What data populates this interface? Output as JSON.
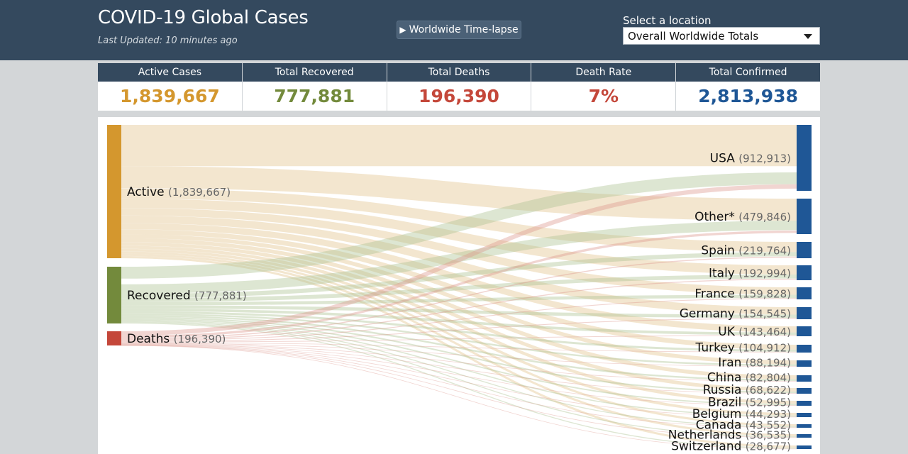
{
  "header": {
    "title": "COVID-19 Global Cases",
    "last_updated": "Last Updated: 10 minutes ago",
    "timelapse_label": "Worldwide Time-lapse",
    "location_label": "Select a location",
    "location_selected": "Overall Worldwide Totals"
  },
  "stats": [
    {
      "label": "Active Cases",
      "value": "1,839,667",
      "color": "#d4972e"
    },
    {
      "label": "Total Recovered",
      "value": "777,881",
      "color": "#738a3c"
    },
    {
      "label": "Total Deaths",
      "value": "196,390",
      "color": "#c4473a"
    },
    {
      "label": "Death Rate",
      "value": "7%",
      "color": "#c4473a"
    },
    {
      "label": "Total Confirmed",
      "value": "2,813,938",
      "color": "#1f5796"
    }
  ],
  "sankey": {
    "sources": [
      {
        "name": "Active",
        "value": "(1,839,667)",
        "color": "#d4972e"
      },
      {
        "name": "Recovered",
        "value": "(777,881)",
        "color": "#738a3c"
      },
      {
        "name": "Deaths",
        "value": "(196,390)",
        "color": "#c4473a"
      }
    ],
    "target_color": "#1f5796",
    "targets": [
      {
        "name": "USA",
        "value": "(912,913)"
      },
      {
        "name": "Other*",
        "value": "(479,846)"
      },
      {
        "name": "Spain",
        "value": "(219,764)"
      },
      {
        "name": "Italy",
        "value": "(192,994)"
      },
      {
        "name": "France",
        "value": "(159,828)"
      },
      {
        "name": "Germany",
        "value": "(154,545)"
      },
      {
        "name": "UK",
        "value": "(143,464)"
      },
      {
        "name": "Turkey",
        "value": "(104,912)"
      },
      {
        "name": "Iran",
        "value": "(88,194)"
      },
      {
        "name": "China",
        "value": "(82,804)"
      },
      {
        "name": "Russia",
        "value": "(68,622)"
      },
      {
        "name": "Brazil",
        "value": "(52,995)"
      },
      {
        "name": "Belgium",
        "value": "(44,293)"
      },
      {
        "name": "Canada",
        "value": "(43,552)"
      },
      {
        "name": "Netherlands",
        "value": "(36,535)"
      },
      {
        "name": "Switzerland",
        "value": "(28,677)"
      }
    ]
  }
}
